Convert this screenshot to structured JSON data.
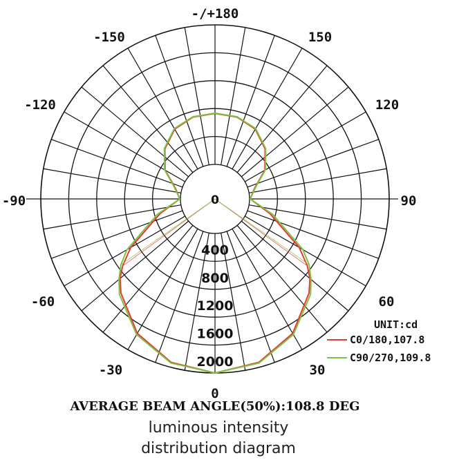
{
  "chart_data": {
    "type": "polar",
    "unit_label": "UNIT:cd",
    "angle_labels": [
      "0",
      "30",
      "60",
      "90",
      "120",
      "150",
      "-/+180",
      "-150",
      "-120",
      "-90",
      "-60",
      "-30"
    ],
    "ring_labels": [
      "0",
      "400",
      "800",
      "1200",
      "1600",
      "2000"
    ],
    "r_range": [
      0,
      2000
    ],
    "series": [
      {
        "name": "C0/180,107.8",
        "color": "#e53935",
        "angles": [
          0,
          15,
          30,
          45,
          50,
          54,
          60,
          75,
          90,
          105,
          120,
          135,
          150,
          165,
          180
        ],
        "values": [
          2000,
          1930,
          1730,
          1410,
          1280,
          1140,
          900,
          320,
          10,
          90,
          330,
          520,
          660,
          720,
          730
        ]
      },
      {
        "name": "C90/270,109.8",
        "color": "#7cc242",
        "angles": [
          0,
          15,
          30,
          45,
          50,
          55,
          60,
          75,
          90,
          105,
          120,
          135,
          150,
          165,
          180
        ],
        "values": [
          2000,
          1940,
          1750,
          1440,
          1300,
          1150,
          960,
          360,
          10,
          100,
          340,
          530,
          670,
          725,
          735
        ]
      }
    ]
  },
  "beam_angle_text": "AVERAGE BEAM ANGLE(50%):108.8 DEG",
  "caption": {
    "line1": "luminous intensity",
    "line2": "distribution diagram"
  }
}
